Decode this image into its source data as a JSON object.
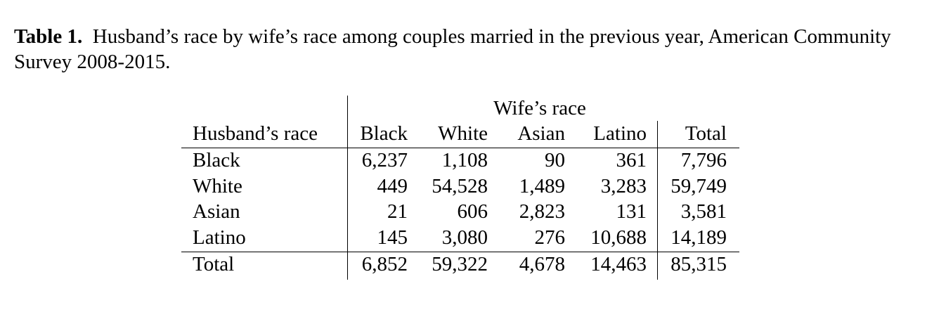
{
  "caption": {
    "label": "Table 1.",
    "text": "Husband’s race by wife’s race among couples married in the previous year, American Community Survey 2008-2015."
  },
  "table": {
    "group_header": "Wife’s race",
    "corner_header": "Husband’s race",
    "columns": [
      "Black",
      "White",
      "Asian",
      "Latino",
      "Total"
    ],
    "rows": [
      {
        "label": "Black",
        "values": [
          "6,237",
          "1,108",
          "90",
          "361",
          "7,796"
        ]
      },
      {
        "label": "White",
        "values": [
          "449",
          "54,528",
          "1,489",
          "3,283",
          "59,749"
        ]
      },
      {
        "label": "Asian",
        "values": [
          "21",
          "606",
          "2,823",
          "131",
          "3,581"
        ]
      },
      {
        "label": "Latino",
        "values": [
          "145",
          "3,080",
          "276",
          "10,688",
          "14,189"
        ]
      }
    ],
    "total_row": {
      "label": "Total",
      "values": [
        "6,852",
        "59,322",
        "4,678",
        "14,463",
        "85,315"
      ]
    }
  }
}
